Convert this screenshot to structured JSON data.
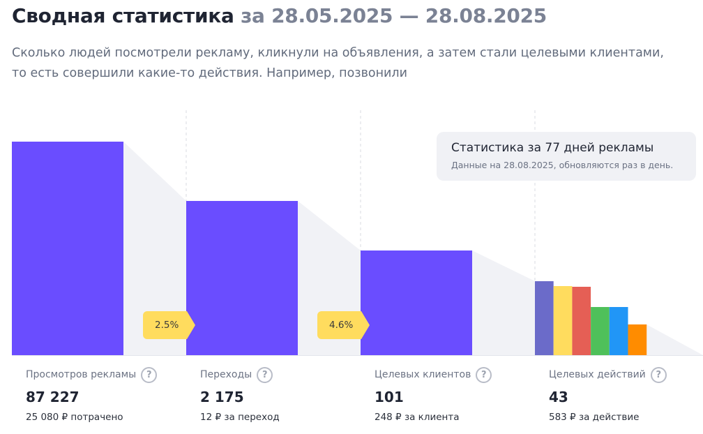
{
  "header": {
    "title": "Сводная статистика",
    "date_range": "за 28.05.2025 — 28.08.2025",
    "description": "Сколько людей посмотрели рекламу, кликнули на объявления, а затем стали целевыми клиентами, то есть совершили какие-то действия. Например, позвонили"
  },
  "tooltip": {
    "title": "Статистика за 77 дней рекламы",
    "subtitle": "Данные на 28.08.2025, обновляются раз в день."
  },
  "colors": {
    "bar": "#6a4dff",
    "shadow": "#f1f2f6",
    "badge": "#ffdc5e",
    "actions": [
      "#6b6bc9",
      "#ffdc5e",
      "#e55f55",
      "#4fc05a",
      "#2196f6",
      "#ff8c00"
    ]
  },
  "conversions": [
    "2.5%",
    "4.6%"
  ],
  "stats": [
    {
      "label": "Просмотров рекламы",
      "value": "87 227",
      "note": "25 080 ₽ потрачено"
    },
    {
      "label": "Переходы",
      "value": "2 175",
      "note": "12 ₽ за переход"
    },
    {
      "label": "Целевых клиентов",
      "value": "101",
      "note": "248 ₽ за клиента"
    },
    {
      "label": "Целевых действий",
      "value": "43",
      "note": "583 ₽ за действие"
    }
  ],
  "help_glyph": "?",
  "chart_data": {
    "type": "bar",
    "categories": [
      "Просмотров рекламы",
      "Переходы",
      "Целевых клиентов",
      "Целевых действий"
    ],
    "values": [
      87227,
      2175,
      101,
      43
    ],
    "title": "",
    "xlabel": "",
    "ylabel": ""
  }
}
